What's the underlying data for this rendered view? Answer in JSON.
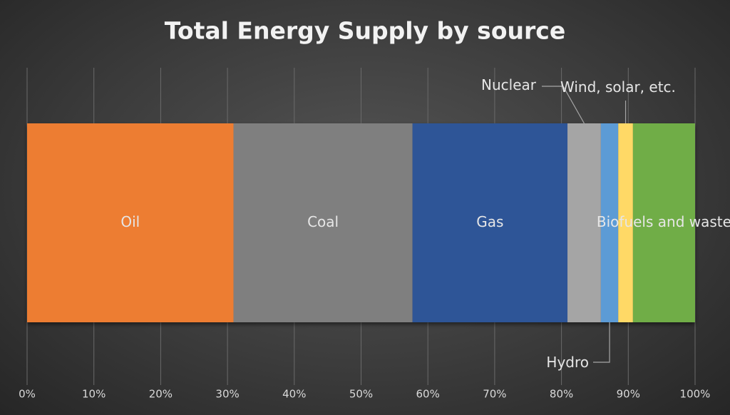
{
  "chart_data": {
    "type": "stacked_bar_100",
    "title": "Total Energy Supply by source",
    "series": [
      {
        "name": "Oil",
        "color": "#ed7d31",
        "values": [
          30.9
        ]
      },
      {
        "name": "Coal",
        "color": "#7f7f7f",
        "values": [
          26.8
        ]
      },
      {
        "name": "Gas",
        "color": "#2f5597",
        "values": [
          23.2
        ]
      },
      {
        "name": "Nuclear",
        "color": "#a5a5a5",
        "values": [
          5.0
        ]
      },
      {
        "name": "Hydro",
        "color": "#5b9bd5",
        "values": [
          2.6
        ]
      },
      {
        "name": "Wind, solar, etc.",
        "color": "#ffd966",
        "values": [
          2.2
        ]
      },
      {
        "name": "Biofuels and waste",
        "color": "#70ad47",
        "values": [
          9.3
        ]
      }
    ],
    "xlim": [
      0,
      100
    ],
    "xticks": [
      {
        "value": 0,
        "label": "0%"
      },
      {
        "value": 10,
        "label": "10%"
      },
      {
        "value": 20,
        "label": "20%"
      },
      {
        "value": 30,
        "label": "30%"
      },
      {
        "value": 40,
        "label": "40%"
      },
      {
        "value": 50,
        "label": "50%"
      },
      {
        "value": 60,
        "label": "60%"
      },
      {
        "value": 70,
        "label": "70%"
      },
      {
        "value": 80,
        "label": "80%"
      },
      {
        "value": 90,
        "label": "90%"
      },
      {
        "value": 100,
        "label": "100%"
      }
    ],
    "grid": true
  }
}
